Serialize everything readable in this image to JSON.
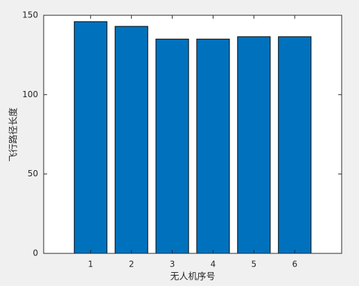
{
  "chart_data": {
    "type": "bar",
    "x": [
      1,
      2,
      3,
      4,
      5,
      6
    ],
    "values": [
      146,
      143,
      135,
      135,
      136.5,
      136.5
    ],
    "color": "#0072bd",
    "xlabel": "无人机序号",
    "ylabel": "飞行路径长度",
    "xlim": [
      -0.15,
      7.15
    ],
    "xticks": [
      1,
      2,
      3,
      4,
      5,
      6
    ],
    "ylim": [
      0,
      150
    ],
    "yticks": [
      0,
      50,
      100,
      150
    ],
    "bar_width": 0.8
  }
}
